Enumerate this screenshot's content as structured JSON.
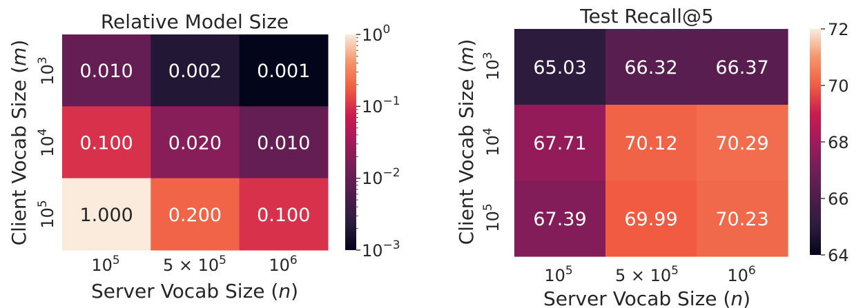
{
  "chart_data": [
    {
      "type": "heatmap",
      "title": "Relative Model Size",
      "xlabel": "Server Vocab Size (n)",
      "ylabel": "Client Vocab Size (m)",
      "x_ticks": [
        "10^5",
        "5×10^5",
        "10^6"
      ],
      "y_ticks": [
        "10^3",
        "10^4",
        "10^5"
      ],
      "values": [
        [
          0.01,
          0.002,
          0.001
        ],
        [
          0.1,
          0.02,
          0.01
        ],
        [
          1.0,
          0.2,
          0.1
        ]
      ],
      "labels": [
        [
          "0.010",
          "0.002",
          "0.001"
        ],
        [
          "0.100",
          "0.020",
          "0.010"
        ],
        [
          "1.000",
          "0.200",
          "0.100"
        ]
      ],
      "colorbar": {
        "scale": "log",
        "range": [
          0.001,
          1
        ],
        "ticks": [
          "10^0",
          "10^-1",
          "10^-2",
          "10^-3"
        ]
      },
      "colormap": "rocket"
    },
    {
      "type": "heatmap",
      "title": "Test Recall@5",
      "xlabel": "Server Vocab Size (n)",
      "ylabel": "Client Vocab Size (m)",
      "x_ticks": [
        "10^5",
        "5×10^5",
        "10^6"
      ],
      "y_ticks": [
        "10^3",
        "10^4",
        "10^5"
      ],
      "values": [
        [
          65.03,
          66.32,
          66.37
        ],
        [
          67.71,
          70.12,
          70.29
        ],
        [
          67.39,
          69.99,
          70.23
        ]
      ],
      "labels": [
        [
          "65.03",
          "66.32",
          "66.37"
        ],
        [
          "67.71",
          "70.12",
          "70.29"
        ],
        [
          "67.39",
          "69.99",
          "70.23"
        ]
      ],
      "colorbar": {
        "scale": "linear",
        "range": [
          64,
          72
        ],
        "ticks": [
          "72",
          "70",
          "68",
          "66",
          "64"
        ]
      },
      "colormap": "rocket"
    }
  ]
}
